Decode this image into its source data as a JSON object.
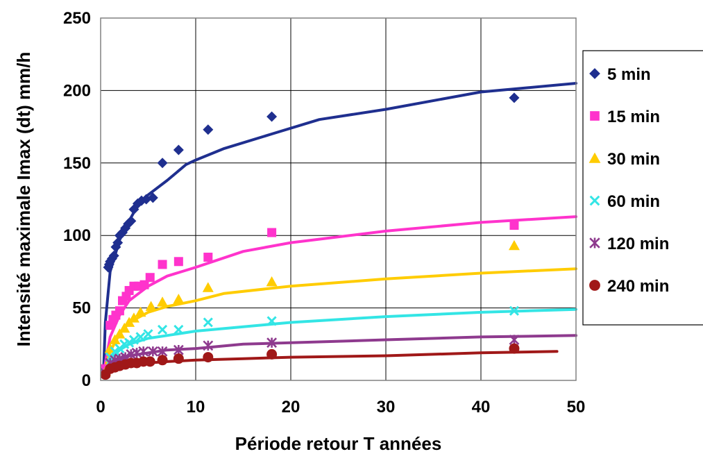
{
  "chart_data": {
    "type": "scatter",
    "xlabel": "Période retour T années",
    "ylabel": "Intensité maximale Imax (dt) mm/h",
    "xlim": [
      0,
      50
    ],
    "ylim": [
      0,
      250
    ],
    "x_ticks": [
      "0",
      "10",
      "20",
      "30",
      "40",
      "50"
    ],
    "y_ticks": [
      "0",
      "50",
      "100",
      "150",
      "200",
      "250"
    ],
    "grid": true,
    "legend_position": "right",
    "series": [
      {
        "name": "5 min",
        "color": "#1f2f8f",
        "marker": "diamond",
        "points": [
          [
            0.5,
            5
          ],
          [
            0.8,
            78
          ],
          [
            0.9,
            80
          ],
          [
            1.0,
            82
          ],
          [
            1.2,
            84
          ],
          [
            1.4,
            86
          ],
          [
            1.6,
            92
          ],
          [
            1.8,
            95
          ],
          [
            2.0,
            100
          ],
          [
            2.3,
            102
          ],
          [
            2.6,
            105
          ],
          [
            2.9,
            108
          ],
          [
            3.2,
            110
          ],
          [
            3.5,
            118
          ],
          [
            3.9,
            122
          ],
          [
            4.3,
            124
          ],
          [
            4.8,
            125
          ],
          [
            5.5,
            126
          ],
          [
            6.5,
            150
          ],
          [
            8.2,
            159
          ],
          [
            11.3,
            173
          ],
          [
            18.0,
            182
          ],
          [
            43.5,
            195
          ]
        ],
        "fit": [
          [
            0.3,
            5
          ],
          [
            0.5,
            40
          ],
          [
            1,
            75
          ],
          [
            2,
            97
          ],
          [
            3,
            110
          ],
          [
            4,
            122
          ],
          [
            5,
            128
          ],
          [
            7,
            138
          ],
          [
            9,
            149
          ],
          [
            10,
            152
          ],
          [
            13,
            160
          ],
          [
            18,
            170
          ],
          [
            23,
            180
          ],
          [
            30,
            187
          ],
          [
            40,
            199
          ],
          [
            50,
            205
          ]
        ]
      },
      {
        "name": "15 min",
        "color": "#ff33cc",
        "marker": "square",
        "points": [
          [
            0.5,
            8
          ],
          [
            1.0,
            38
          ],
          [
            1.3,
            42
          ],
          [
            1.6,
            45
          ],
          [
            2.0,
            48
          ],
          [
            2.3,
            55
          ],
          [
            2.7,
            58
          ],
          [
            3.0,
            62
          ],
          [
            3.5,
            65
          ],
          [
            4.0,
            65
          ],
          [
            4.6,
            66
          ],
          [
            5.2,
            71
          ],
          [
            6.5,
            80
          ],
          [
            8.2,
            82
          ],
          [
            11.3,
            85
          ],
          [
            18.0,
            102
          ],
          [
            43.5,
            107
          ]
        ],
        "fit": [
          [
            0.3,
            5
          ],
          [
            1,
            30
          ],
          [
            2,
            45
          ],
          [
            3,
            55
          ],
          [
            5,
            65
          ],
          [
            7,
            72
          ],
          [
            10,
            78
          ],
          [
            15,
            89
          ],
          [
            20,
            95
          ],
          [
            30,
            103
          ],
          [
            40,
            109
          ],
          [
            50,
            113
          ]
        ]
      },
      {
        "name": "30 min",
        "color": "#ffcc00",
        "marker": "triangle",
        "points": [
          [
            0.5,
            6
          ],
          [
            1.0,
            22
          ],
          [
            1.5,
            28
          ],
          [
            2.0,
            32
          ],
          [
            2.5,
            36
          ],
          [
            3.0,
            40
          ],
          [
            3.5,
            43
          ],
          [
            4.2,
            47
          ],
          [
            5.3,
            51
          ],
          [
            6.5,
            54
          ],
          [
            8.2,
            56
          ],
          [
            11.3,
            64
          ],
          [
            18.0,
            68
          ],
          [
            43.5,
            93
          ]
        ],
        "fit": [
          [
            0.3,
            5
          ],
          [
            1,
            20
          ],
          [
            2,
            32
          ],
          [
            3,
            40
          ],
          [
            5,
            47
          ],
          [
            7,
            51
          ],
          [
            10,
            55
          ],
          [
            13,
            60
          ],
          [
            20,
            65
          ],
          [
            30,
            70
          ],
          [
            40,
            74
          ],
          [
            50,
            77
          ]
        ]
      },
      {
        "name": "60 min",
        "color": "#33e5e5",
        "marker": "x",
        "points": [
          [
            0.5,
            5
          ],
          [
            1.0,
            16
          ],
          [
            1.5,
            20
          ],
          [
            2.0,
            22
          ],
          [
            2.5,
            25
          ],
          [
            3.0,
            26
          ],
          [
            3.5,
            28
          ],
          [
            4.2,
            30
          ],
          [
            5.0,
            32
          ],
          [
            6.5,
            35
          ],
          [
            8.2,
            35
          ],
          [
            11.3,
            40
          ],
          [
            18.0,
            41
          ],
          [
            43.5,
            48
          ]
        ],
        "fit": [
          [
            0.3,
            5
          ],
          [
            1,
            14
          ],
          [
            2,
            21
          ],
          [
            3,
            25
          ],
          [
            5,
            29
          ],
          [
            7,
            31
          ],
          [
            10,
            34
          ],
          [
            15,
            37
          ],
          [
            20,
            40
          ],
          [
            30,
            44
          ],
          [
            40,
            47
          ],
          [
            50,
            49
          ]
        ]
      },
      {
        "name": "120 min",
        "color": "#8e3a8e",
        "marker": "star",
        "points": [
          [
            0.5,
            5
          ],
          [
            1.0,
            12
          ],
          [
            1.5,
            14
          ],
          [
            2.0,
            15
          ],
          [
            2.6,
            16
          ],
          [
            3.2,
            18
          ],
          [
            3.8,
            19
          ],
          [
            4.5,
            20
          ],
          [
            5.5,
            20
          ],
          [
            6.5,
            20
          ],
          [
            8.2,
            21
          ],
          [
            11.3,
            24
          ],
          [
            18.0,
            26
          ],
          [
            43.5,
            28
          ]
        ],
        "fit": [
          [
            0.3,
            5
          ],
          [
            1,
            12
          ],
          [
            2,
            15
          ],
          [
            3,
            17
          ],
          [
            5,
            19
          ],
          [
            7,
            21
          ],
          [
            10,
            22
          ],
          [
            15,
            25
          ],
          [
            20,
            26
          ],
          [
            30,
            28
          ],
          [
            40,
            30
          ],
          [
            50,
            31
          ]
        ]
      },
      {
        "name": "240 min",
        "color": "#a01818",
        "marker": "circle",
        "points": [
          [
            0.5,
            4
          ],
          [
            1.0,
            8
          ],
          [
            1.5,
            9
          ],
          [
            2.0,
            10
          ],
          [
            2.6,
            11
          ],
          [
            3.2,
            12
          ],
          [
            3.8,
            12
          ],
          [
            4.5,
            13
          ],
          [
            5.2,
            13
          ],
          [
            6.5,
            14
          ],
          [
            8.2,
            15
          ],
          [
            11.3,
            16
          ],
          [
            18.0,
            18
          ],
          [
            43.5,
            22
          ]
        ],
        "fit": [
          [
            0.3,
            4
          ],
          [
            1,
            8
          ],
          [
            2,
            10
          ],
          [
            3,
            11
          ],
          [
            5,
            12
          ],
          [
            7,
            13
          ],
          [
            10,
            14
          ],
          [
            15,
            15
          ],
          [
            20,
            16
          ],
          [
            30,
            17
          ],
          [
            40,
            19
          ],
          [
            48,
            20
          ]
        ]
      }
    ]
  }
}
